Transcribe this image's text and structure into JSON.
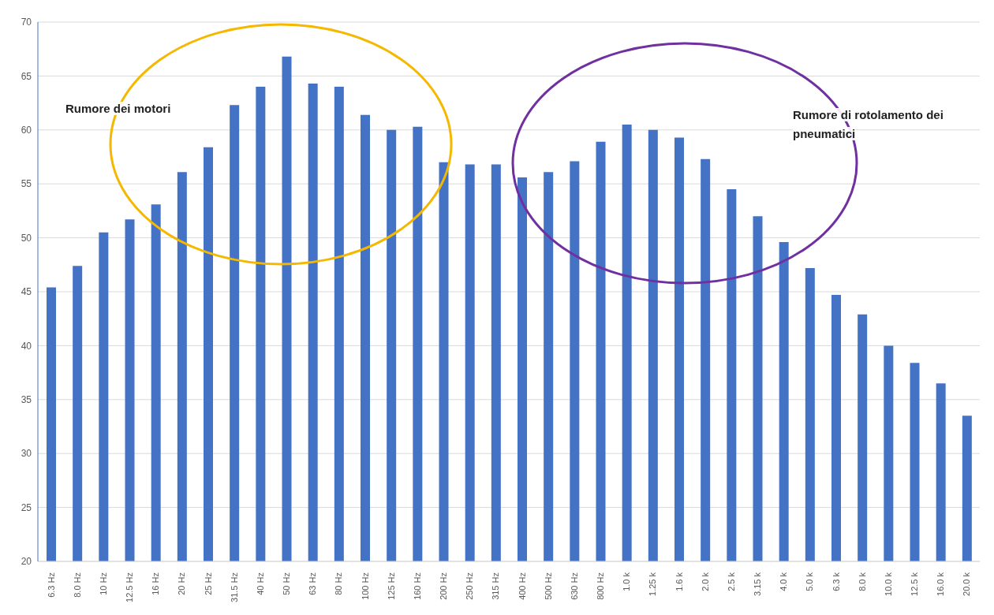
{
  "chart_data": {
    "type": "bar",
    "categories": [
      "6.3 Hz",
      "8.0 Hz",
      "10 Hz",
      "12.5 Hz",
      "16 Hz",
      "20 Hz",
      "25 Hz",
      "31.5 Hz",
      "40 Hz",
      "50 Hz",
      "63 Hz",
      "80 Hz",
      "100 Hz",
      "125 Hz",
      "160 Hz",
      "200 Hz",
      "250 Hz",
      "315 Hz",
      "400 Hz",
      "500 Hz",
      "630 Hz",
      "800 Hz",
      "1.0 k",
      "1.25 k",
      "1.6 k",
      "2.0 k",
      "2.5 k",
      "3.15 k",
      "4.0 k",
      "5.0 k",
      "6.3 k",
      "8.0 k",
      "10.0 k",
      "12.5 k",
      "16.0 k",
      "20.0 k"
    ],
    "values": [
      45.4,
      47.4,
      50.5,
      51.7,
      53.1,
      56.1,
      58.4,
      62.3,
      64.0,
      66.8,
      64.3,
      64.0,
      61.4,
      60.0,
      60.3,
      57.0,
      56.8,
      56.8,
      55.6,
      56.1,
      57.1,
      58.9,
      60.5,
      60.0,
      59.3,
      57.3,
      54.5,
      52.0,
      49.6,
      47.2,
      44.7,
      42.9,
      40.0,
      38.4,
      36.5,
      33.5
    ],
    "color": "#4472c4",
    "ylim": [
      20,
      70
    ],
    "yticks": [
      20,
      25,
      30,
      35,
      40,
      45,
      50,
      55,
      60,
      65,
      70
    ],
    "grid": "y",
    "annotations": [
      "Rumore dei motori",
      "Rumore di rotolamento dei pneumatici"
    ]
  }
}
